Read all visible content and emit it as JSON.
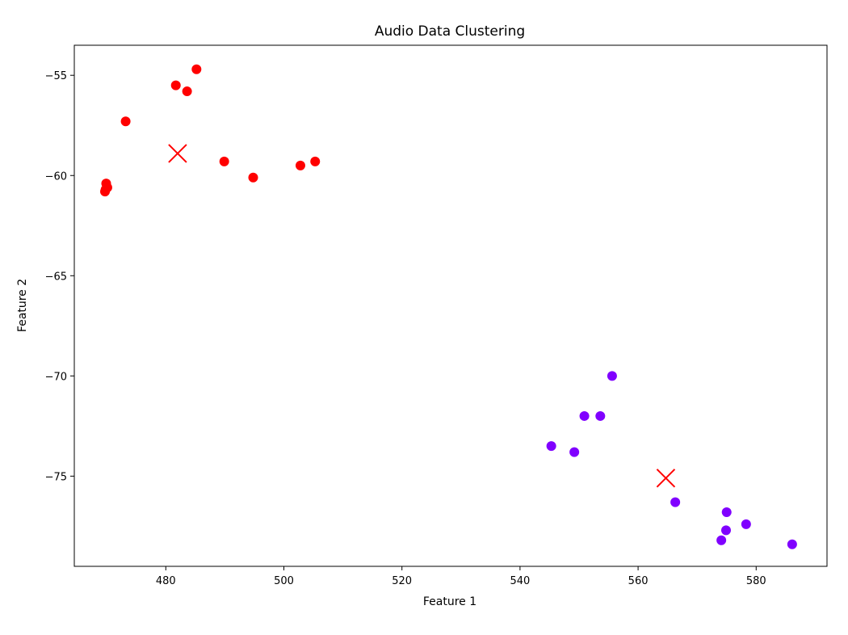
{
  "chart_data": {
    "type": "scatter",
    "title": "Audio Data Clustering",
    "xlabel": "Feature 1",
    "ylabel": "Feature 2",
    "xlim": [
      464.5,
      592
    ],
    "ylim": [
      -79.5,
      -53.5
    ],
    "xticks": [
      480,
      500,
      520,
      540,
      560,
      580
    ],
    "yticks": [
      -55,
      -60,
      -65,
      -70,
      -75
    ],
    "grid": false,
    "series": [
      {
        "color": "#ff0000",
        "points": [
          [
            485.2,
            -54.7
          ],
          [
            481.7,
            -55.5
          ],
          [
            483.6,
            -55.8
          ],
          [
            473.2,
            -57.3
          ],
          [
            489.9,
            -59.3
          ],
          [
            494.8,
            -60.1
          ],
          [
            502.8,
            -59.5
          ],
          [
            505.3,
            -59.3
          ],
          [
            469.9,
            -60.4
          ],
          [
            470.1,
            -60.6
          ],
          [
            469.8,
            -60.7
          ],
          [
            469.7,
            -60.8
          ]
        ]
      },
      {
        "color": "#8000ff",
        "points": [
          [
            555.6,
            -70.0
          ],
          [
            550.9,
            -72.0
          ],
          [
            553.6,
            -72.0
          ],
          [
            545.3,
            -73.5
          ],
          [
            549.2,
            -73.8
          ],
          [
            566.3,
            -76.3
          ],
          [
            575.0,
            -76.8
          ],
          [
            578.3,
            -77.4
          ],
          [
            574.9,
            -77.7
          ],
          [
            574.1,
            -78.2
          ],
          [
            586.1,
            -78.4
          ]
        ]
      }
    ],
    "centroids": {
      "color": "#ff0000",
      "marker": "x",
      "points": [
        [
          482.0,
          -58.9
        ],
        [
          564.7,
          -75.1
        ]
      ]
    }
  }
}
